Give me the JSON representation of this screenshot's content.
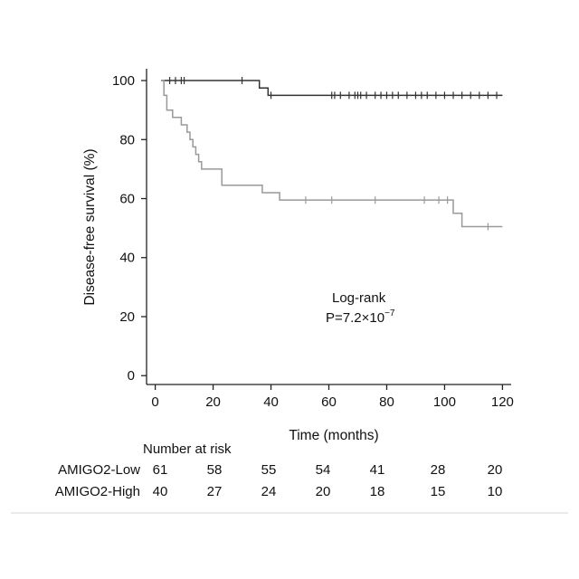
{
  "chart_data": {
    "type": "line",
    "subtype": "kaplan-meier",
    "title": "",
    "xlabel": "Time (months)",
    "ylabel": "Disease-free survival (%)",
    "xlim": [
      -3,
      123
    ],
    "ylim": [
      -3,
      104
    ],
    "xticks": [
      0,
      20,
      40,
      60,
      80,
      100,
      120
    ],
    "yticks": [
      0,
      20,
      40,
      60,
      80,
      100
    ],
    "grid": false,
    "annotation": {
      "line1": "Log-rank",
      "p_prefix": "P=7.2×10",
      "p_exponent": "−7"
    },
    "series": [
      {
        "key": "low",
        "color": "#333333",
        "steps": [
          [
            2,
            100
          ],
          [
            36,
            100
          ],
          [
            36,
            97.5
          ],
          [
            39,
            97.5
          ],
          [
            39,
            95
          ],
          [
            120,
            95
          ]
        ],
        "censored": [
          5,
          7,
          9,
          10,
          30,
          40,
          61,
          62,
          64,
          67,
          69,
          70,
          71,
          73,
          76,
          78,
          80,
          82,
          84,
          87,
          90,
          92,
          94,
          97,
          100,
          103,
          106,
          109,
          112,
          115,
          118
        ]
      },
      {
        "key": "high",
        "color": "#999999",
        "steps": [
          [
            2,
            100
          ],
          [
            3,
            100
          ],
          [
            3,
            95
          ],
          [
            4,
            95
          ],
          [
            4,
            90
          ],
          [
            6,
            90
          ],
          [
            6,
            87.5
          ],
          [
            9,
            87.5
          ],
          [
            9,
            85
          ],
          [
            11,
            85
          ],
          [
            11,
            82.5
          ],
          [
            12,
            82.5
          ],
          [
            12,
            80
          ],
          [
            13,
            80
          ],
          [
            13,
            77.5
          ],
          [
            14,
            77.5
          ],
          [
            14,
            75
          ],
          [
            15,
            75
          ],
          [
            15,
            72.5
          ],
          [
            16,
            72.5
          ],
          [
            16,
            70
          ],
          [
            23,
            70
          ],
          [
            23,
            64.5
          ],
          [
            37,
            64.5
          ],
          [
            37,
            62
          ],
          [
            43,
            62
          ],
          [
            43,
            59.5
          ],
          [
            103,
            59.5
          ],
          [
            103,
            55
          ],
          [
            106,
            55
          ],
          [
            106,
            50.5
          ],
          [
            120,
            50.5
          ]
        ],
        "censored": [
          52,
          61,
          76,
          93,
          98,
          101,
          115
        ]
      }
    ],
    "risk_table": {
      "title": "Number at risk",
      "times": [
        0,
        20,
        40,
        60,
        80,
        100,
        120
      ],
      "rows": [
        {
          "label": "AMIGO2-Low",
          "values": [
            61,
            58,
            55,
            54,
            41,
            28,
            20
          ]
        },
        {
          "label": "AMIGO2-High",
          "values": [
            40,
            27,
            24,
            20,
            18,
            15,
            10
          ]
        }
      ]
    }
  }
}
